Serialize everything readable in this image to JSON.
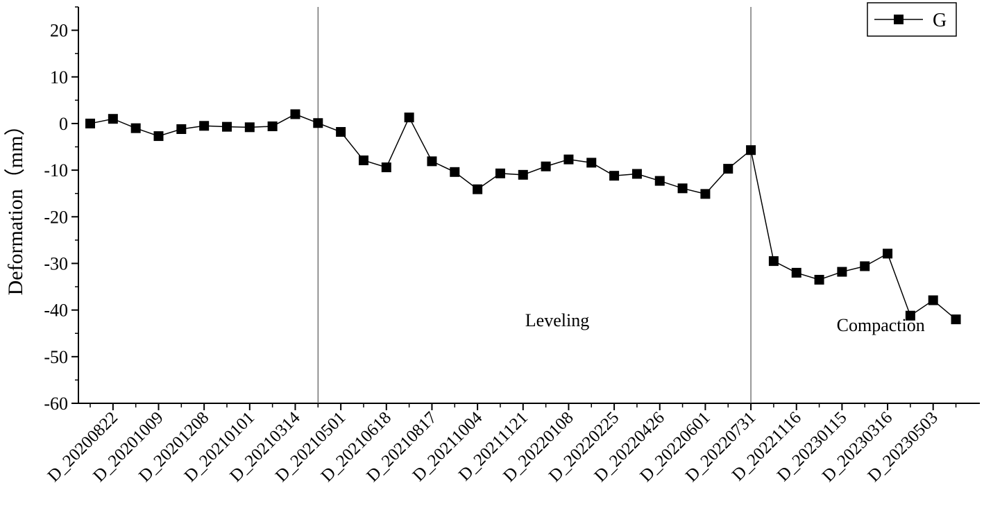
{
  "chart_data": {
    "type": "line",
    "ylabel": "Deformation（mm）",
    "ylim": [
      -60,
      25
    ],
    "yticks": [
      20,
      10,
      0,
      -10,
      -20,
      -30,
      -40,
      -50,
      -60
    ],
    "grid": false,
    "legend_position": "top-right",
    "tick_labels": [
      "D_20200822",
      "D_20201009",
      "D_20201208",
      "D_20210101",
      "D_20210314",
      "D_20210501",
      "D_20210618",
      "D_20210817",
      "D_20211004",
      "D_20211121",
      "D_20220108",
      "D_20220225",
      "D_20220426",
      "D_20220601",
      "D_20220731",
      "D_20221116",
      "D_20230115",
      "D_20230316",
      "D_20230503"
    ],
    "series": [
      {
        "name": "G",
        "color": "#000000",
        "marker": "square",
        "values": [
          0,
          1,
          -1,
          -2.7,
          -1.2,
          -0.5,
          -0.7,
          -0.8,
          -0.6,
          2,
          0.1,
          -1.8,
          -7.9,
          -9.4,
          1.3,
          -8.1,
          -10.4,
          -14.1,
          -10.7,
          -11,
          -9.2,
          -7.7,
          -8.4,
          -11.2,
          -10.8,
          -12.3,
          -13.9,
          -15.1,
          -9.7,
          -5.7,
          -29.5,
          -32,
          -33.5,
          -31.8,
          -30.6,
          -27.9,
          -41.2,
          -37.9,
          -42
        ]
      }
    ],
    "annotations": [
      {
        "text": "Leveling",
        "x_index": 20.5,
        "y": -43.5
      },
      {
        "text": "Compaction",
        "x_index": 34.7,
        "y": -44.5
      }
    ],
    "vertical_lines_at_index": [
      10,
      29
    ]
  }
}
